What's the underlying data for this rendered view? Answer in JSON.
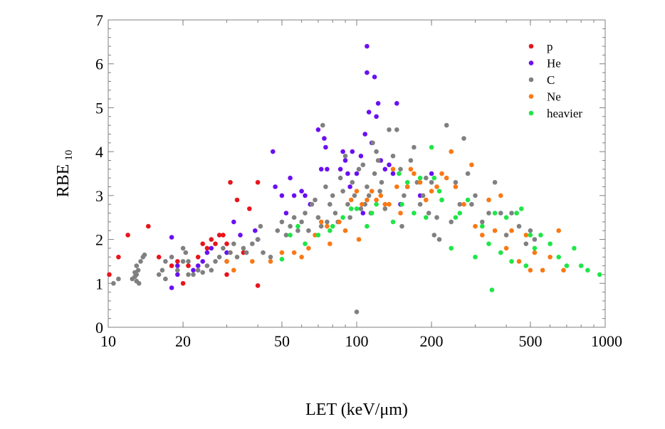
{
  "chart_data": {
    "type": "scatter",
    "title": "",
    "xlabel": "LET (keV/μm)",
    "ylabel": "RBE",
    "ylabel_subscript": "10",
    "xscale": "log",
    "xlim": [
      10,
      1000
    ],
    "ylim": [
      0,
      7
    ],
    "xticks": [
      10,
      20,
      50,
      100,
      200,
      500,
      1000
    ],
    "xtick_labels": [
      "10",
      "20",
      "50",
      "100",
      "200",
      "500",
      "1000"
    ],
    "yticks": [
      0,
      1,
      2,
      3,
      4,
      5,
      6,
      7
    ],
    "ytick_labels": [
      "0",
      "1",
      "2",
      "3",
      "4",
      "5",
      "6",
      "7"
    ],
    "grid": false,
    "legend_position": "top-right",
    "series": [
      {
        "name": "p",
        "color": "#e8141c",
        "points": [
          [
            10.1,
            1.2
          ],
          [
            11,
            1.6
          ],
          [
            12,
            2.1
          ],
          [
            14.5,
            2.3
          ],
          [
            16,
            1.6
          ],
          [
            19,
            1.5
          ],
          [
            20,
            1.0
          ],
          [
            21,
            1.4
          ],
          [
            23,
            1.6
          ],
          [
            24,
            1.9
          ],
          [
            26,
            2.0
          ],
          [
            27,
            1.9
          ],
          [
            28,
            2.1
          ],
          [
            29,
            2.1
          ],
          [
            30,
            1.9
          ],
          [
            31,
            3.3
          ],
          [
            33,
            2.9
          ],
          [
            35,
            1.7
          ],
          [
            37,
            2.7
          ],
          [
            40,
            3.3
          ],
          [
            40,
            0.95
          ],
          [
            30,
            1.2
          ],
          [
            25,
            1.8
          ],
          [
            18,
            1.4
          ]
        ]
      },
      {
        "name": "He",
        "color": "#6a10f0",
        "points": [
          [
            18,
            2.05
          ],
          [
            18,
            0.9
          ],
          [
            19,
            1.2
          ],
          [
            19,
            1.4
          ],
          [
            22,
            1.3
          ],
          [
            23,
            1.4
          ],
          [
            24,
            1.5
          ],
          [
            25,
            1.7
          ],
          [
            26,
            1.8
          ],
          [
            30,
            1.7
          ],
          [
            32,
            2.4
          ],
          [
            34,
            2.1
          ],
          [
            39,
            2.2
          ],
          [
            40,
            2.0
          ],
          [
            46,
            4.0
          ],
          [
            47,
            3.2
          ],
          [
            50,
            3.0
          ],
          [
            52,
            2.6
          ],
          [
            54,
            3.4
          ],
          [
            56,
            3.0
          ],
          [
            60,
            3.1
          ],
          [
            62,
            3.0
          ],
          [
            65,
            2.8
          ],
          [
            70,
            4.5
          ],
          [
            72,
            3.6
          ],
          [
            74,
            4.3
          ],
          [
            75,
            4.1
          ],
          [
            76,
            3.6
          ],
          [
            86,
            3.6
          ],
          [
            88,
            4.0
          ],
          [
            90,
            3.8
          ],
          [
            92,
            3.5
          ],
          [
            94,
            3.2
          ],
          [
            96,
            4.0
          ],
          [
            100,
            3.5
          ],
          [
            104,
            3.9
          ],
          [
            106,
            2.6
          ],
          [
            108,
            4.4
          ],
          [
            110,
            6.4
          ],
          [
            110,
            5.8
          ],
          [
            112,
            4.9
          ],
          [
            115,
            4.2
          ],
          [
            118,
            5.7
          ],
          [
            120,
            4.8
          ],
          [
            122,
            5.1
          ],
          [
            125,
            3.8
          ],
          [
            130,
            3.6
          ],
          [
            135,
            3.7
          ],
          [
            140,
            3.5
          ],
          [
            145,
            5.1
          ],
          [
            150,
            2.8
          ],
          [
            180,
            3.0
          ],
          [
            200,
            3.5
          ]
        ]
      },
      {
        "name": "C",
        "color": "#808080",
        "points": [
          [
            10.5,
            1.0
          ],
          [
            11,
            1.1
          ],
          [
            12.5,
            1.1
          ],
          [
            12.8,
            1.15
          ],
          [
            13,
            1.2
          ],
          [
            13.2,
            1.3
          ],
          [
            13,
            1.4
          ],
          [
            13.5,
            1.5
          ],
          [
            13.8,
            1.6
          ],
          [
            14,
            1.65
          ],
          [
            13,
            1.05
          ],
          [
            13.3,
            1.0
          ],
          [
            12.8,
            1.25
          ],
          [
            16,
            1.2
          ],
          [
            16.5,
            1.3
          ],
          [
            17,
            1.5
          ],
          [
            17,
            1.1
          ],
          [
            18,
            1.6
          ],
          [
            19,
            1.3
          ],
          [
            20,
            1.5
          ],
          [
            20,
            1.8
          ],
          [
            20.5,
            1.7
          ],
          [
            21,
            1.5
          ],
          [
            21,
            1.2
          ],
          [
            22,
            1.2
          ],
          [
            23,
            1.3
          ],
          [
            24,
            1.25
          ],
          [
            25,
            1.4
          ],
          [
            26,
            1.3
          ],
          [
            27,
            1.5
          ],
          [
            28,
            1.6
          ],
          [
            29,
            1.8
          ],
          [
            30,
            1.5
          ],
          [
            31,
            1.7
          ],
          [
            32,
            1.9
          ],
          [
            33,
            1.6
          ],
          [
            35,
            1.8
          ],
          [
            36,
            1.7
          ],
          [
            38,
            1.9
          ],
          [
            40,
            2.0
          ],
          [
            41,
            2.3
          ],
          [
            42,
            1.7
          ],
          [
            45,
            1.6
          ],
          [
            48,
            2.2
          ],
          [
            50,
            2.4
          ],
          [
            52,
            2.1
          ],
          [
            54,
            2.3
          ],
          [
            56,
            2.5
          ],
          [
            58,
            2.2
          ],
          [
            60,
            2.4
          ],
          [
            62,
            2.6
          ],
          [
            64,
            2.2
          ],
          [
            66,
            2.8
          ],
          [
            68,
            2.9
          ],
          [
            70,
            2.5
          ],
          [
            72,
            2.3
          ],
          [
            73,
            4.6
          ],
          [
            75,
            3.2
          ],
          [
            76,
            2.4
          ],
          [
            78,
            2.8
          ],
          [
            80,
            3.0
          ],
          [
            82,
            2.6
          ],
          [
            84,
            2.4
          ],
          [
            86,
            3.4
          ],
          [
            88,
            3.1
          ],
          [
            90,
            3.9
          ],
          [
            92,
            2.8
          ],
          [
            94,
            2.5
          ],
          [
            96,
            3.3
          ],
          [
            98,
            3.0
          ],
          [
            100,
            0.35
          ],
          [
            102,
            3.6
          ],
          [
            104,
            2.7
          ],
          [
            106,
            3.7
          ],
          [
            108,
            2.8
          ],
          [
            110,
            3.2
          ],
          [
            112,
            3.0
          ],
          [
            114,
            2.6
          ],
          [
            116,
            4.2
          ],
          [
            118,
            3.5
          ],
          [
            120,
            4.0
          ],
          [
            122,
            3.8
          ],
          [
            124,
            3.1
          ],
          [
            126,
            3.3
          ],
          [
            130,
            2.7
          ],
          [
            135,
            4.5
          ],
          [
            140,
            3.9
          ],
          [
            145,
            4.5
          ],
          [
            150,
            3.6
          ],
          [
            152,
            2.3
          ],
          [
            155,
            3.0
          ],
          [
            160,
            3.2
          ],
          [
            165,
            3.8
          ],
          [
            170,
            4.1
          ],
          [
            175,
            3.3
          ],
          [
            180,
            2.8
          ],
          [
            185,
            3.0
          ],
          [
            190,
            3.4
          ],
          [
            195,
            2.6
          ],
          [
            200,
            3.3
          ],
          [
            205,
            2.1
          ],
          [
            210,
            2.5
          ],
          [
            215,
            2.0
          ],
          [
            220,
            2.9
          ],
          [
            230,
            4.6
          ],
          [
            240,
            2.4
          ],
          [
            250,
            3.3
          ],
          [
            260,
            2.8
          ],
          [
            270,
            4.3
          ],
          [
            280,
            3.5
          ],
          [
            290,
            2.8
          ],
          [
            300,
            3.0
          ],
          [
            320,
            2.4
          ],
          [
            340,
            2.6
          ],
          [
            360,
            3.3
          ],
          [
            380,
            2.6
          ],
          [
            400,
            2.1
          ],
          [
            420,
            2.6
          ],
          [
            450,
            2.3
          ],
          [
            480,
            1.9
          ],
          [
            500,
            2.2
          ],
          [
            520,
            2.0
          ]
        ]
      },
      {
        "name": "Ne",
        "color": "#fa7814",
        "points": [
          [
            30,
            1.5
          ],
          [
            32,
            1.3
          ],
          [
            38,
            1.5
          ],
          [
            45,
            1.5
          ],
          [
            50,
            1.7
          ],
          [
            56,
            1.7
          ],
          [
            60,
            1.6
          ],
          [
            64,
            1.8
          ],
          [
            68,
            2.1
          ],
          [
            72,
            2.4
          ],
          [
            76,
            2.3
          ],
          [
            78,
            1.9
          ],
          [
            85,
            2.4
          ],
          [
            90,
            2.2
          ],
          [
            95,
            2.9
          ],
          [
            100,
            3.1
          ],
          [
            102,
            2.0
          ],
          [
            105,
            2.8
          ],
          [
            110,
            2.9
          ],
          [
            115,
            3.1
          ],
          [
            120,
            2.9
          ],
          [
            125,
            3.0
          ],
          [
            130,
            2.8
          ],
          [
            135,
            2.8
          ],
          [
            140,
            3.6
          ],
          [
            145,
            3.2
          ],
          [
            150,
            2.6
          ],
          [
            160,
            3.2
          ],
          [
            165,
            3.6
          ],
          [
            170,
            3.5
          ],
          [
            180,
            3.3
          ],
          [
            190,
            2.9
          ],
          [
            200,
            3.1
          ],
          [
            210,
            3.2
          ],
          [
            220,
            3.5
          ],
          [
            230,
            3.4
          ],
          [
            240,
            4.0
          ],
          [
            250,
            3.2
          ],
          [
            270,
            2.8
          ],
          [
            290,
            3.7
          ],
          [
            300,
            2.3
          ],
          [
            320,
            2.1
          ],
          [
            340,
            2.9
          ],
          [
            360,
            2.2
          ],
          [
            380,
            3.0
          ],
          [
            400,
            1.8
          ],
          [
            420,
            2.2
          ],
          [
            450,
            1.5
          ],
          [
            480,
            2.1
          ],
          [
            500,
            1.3
          ],
          [
            520,
            1.7
          ],
          [
            560,
            1.3
          ],
          [
            600,
            1.6
          ],
          [
            650,
            2.2
          ],
          [
            680,
            1.3
          ]
        ]
      },
      {
        "name": "heavier",
        "color": "#1ee646",
        "points": [
          [
            50,
            1.55
          ],
          [
            54,
            2.1
          ],
          [
            58,
            2.3
          ],
          [
            62,
            1.9
          ],
          [
            70,
            2.1
          ],
          [
            78,
            2.2
          ],
          [
            80,
            2.3
          ],
          [
            88,
            2.5
          ],
          [
            95,
            2.7
          ],
          [
            100,
            2.7
          ],
          [
            110,
            2.3
          ],
          [
            115,
            2.6
          ],
          [
            120,
            2.8
          ],
          [
            140,
            2.4
          ],
          [
            148,
            3.5
          ],
          [
            152,
            2.8
          ],
          [
            160,
            3.3
          ],
          [
            170,
            2.6
          ],
          [
            180,
            3.4
          ],
          [
            190,
            2.5
          ],
          [
            200,
            4.1
          ],
          [
            205,
            3.4
          ],
          [
            215,
            3.1
          ],
          [
            220,
            2.9
          ],
          [
            240,
            1.8
          ],
          [
            250,
            2.5
          ],
          [
            260,
            2.6
          ],
          [
            280,
            2.9
          ],
          [
            300,
            1.6
          ],
          [
            320,
            2.3
          ],
          [
            340,
            1.9
          ],
          [
            350,
            0.85
          ],
          [
            360,
            2.6
          ],
          [
            380,
            1.7
          ],
          [
            400,
            2.5
          ],
          [
            420,
            1.5
          ],
          [
            440,
            2.6
          ],
          [
            460,
            2.7
          ],
          [
            480,
            1.4
          ],
          [
            500,
            2.1
          ],
          [
            520,
            1.8
          ],
          [
            550,
            2.1
          ],
          [
            600,
            1.9
          ],
          [
            650,
            1.6
          ],
          [
            700,
            1.4
          ],
          [
            750,
            1.8
          ],
          [
            800,
            1.4
          ],
          [
            850,
            1.3
          ],
          [
            950,
            1.2
          ]
        ]
      }
    ]
  }
}
